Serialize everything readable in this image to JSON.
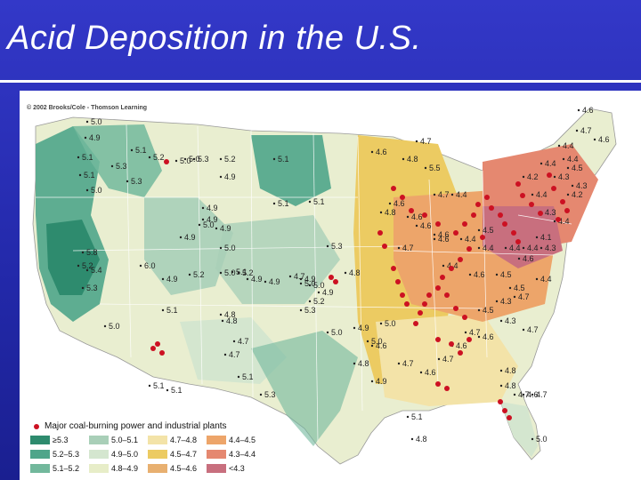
{
  "slide": {
    "title": "Acid Deposition in the U.S."
  },
  "map": {
    "copyright": "© 2002 Brooks/Cole - Thomson Learning",
    "legend_title": "Major coal-burning power and industrial plants",
    "legend": [
      {
        "range": "≥5.3",
        "color": "#2e8b6e"
      },
      {
        "range": "5.0–5.1",
        "color": "#a9cfb8"
      },
      {
        "range": "4.7–4.8",
        "color": "#f3e3a8"
      },
      {
        "range": "4.4–4.5",
        "color": "#eda56a"
      },
      {
        "range": "5.2–5.3",
        "color": "#4fa58a"
      },
      {
        "range": "4.9–5.0",
        "color": "#d4e6cf"
      },
      {
        "range": "4.5–4.7",
        "color": "#eccb62"
      },
      {
        "range": "4.3–4.4",
        "color": "#e58870"
      },
      {
        "range": "5.1–5.2",
        "color": "#72b89c"
      },
      {
        "range": "4.8–4.9",
        "color": "#e7edc8"
      },
      {
        "range": "4.5–4.6",
        "color": "#e8b070"
      },
      {
        "range": "<4.3",
        "color": "#c86f7e"
      }
    ],
    "colors": {
      "land": "#e9eed0",
      "plant": "#cc1122",
      "ocean": "#ffffff"
    },
    "ph_readings": [
      "5.0",
      "4.9",
      "5.1",
      "5.1",
      "5.2",
      "5.3",
      "5.0",
      "5.1",
      "5.3",
      "5.3",
      "5.0",
      "5.2",
      "4.9",
      "5.0",
      "5.1",
      "5.1",
      "5.1",
      "5.3",
      "4.9",
      "4.9",
      "4.9",
      "4.9",
      "4.8",
      "4.7",
      "5.1",
      "5.0",
      "4.7",
      "4.8",
      "4.6",
      "4.6",
      "4.8",
      "4.6",
      "4.7",
      "4.6",
      "4.4",
      "4.6",
      "4.4",
      "4.7",
      "4.6",
      "4.5",
      "4.4",
      "4.4",
      "4.6",
      "4.5",
      "4.5",
      "4.7",
      "4.4",
      "4.3",
      "4.4",
      "4.2",
      "4.3",
      "4.4",
      "4.3",
      "4.2",
      "4.4",
      "4.4",
      "4.6",
      "4.7",
      "4.6",
      "4.5",
      "4.4",
      "4.1",
      "4.3",
      "4.4",
      "4.6",
      "4.4",
      "4.5",
      "4.3",
      "4.3",
      "4.7",
      "4.7",
      "5.0",
      "5.0",
      "4.8",
      "4.9",
      "4.7",
      "4.6",
      "4.7",
      "4.6",
      "4.7",
      "4.6",
      "4.8",
      "4.8",
      "4.7",
      "4.6",
      "5.1",
      "4.8",
      "5.0",
      "5.1",
      "5.1",
      "5.3",
      "5.0",
      "5.2",
      "4.9",
      "4.9",
      "4.7",
      "4.8",
      "5.5",
      "5.8",
      "5.2",
      "5.4",
      "5.3",
      "6.0",
      "4.9",
      "5.2",
      "5.1",
      "4.8",
      "4.7",
      "5.0",
      "4.9",
      "5.3",
      "5.2",
      "5.0",
      "4.9",
      "4.6",
      "5.0",
      "5.0",
      "4.9",
      "5.0",
      "5.1"
    ]
  }
}
